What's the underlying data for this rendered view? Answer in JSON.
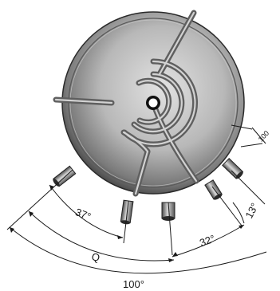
{
  "diagram": {
    "angle_labels": {
      "a37": "37°",
      "a32": "32°",
      "a13": "13°",
      "a100": "100°"
    },
    "letter_labels": {
      "q": "Q"
    },
    "length_labels": {
      "l100": "100"
    }
  },
  "colors": {
    "tank_light": "#dcdcdc",
    "tank_mid": "#9a9a9a",
    "tank_dark": "#3c3c3c",
    "line": "#1a1a1a"
  }
}
